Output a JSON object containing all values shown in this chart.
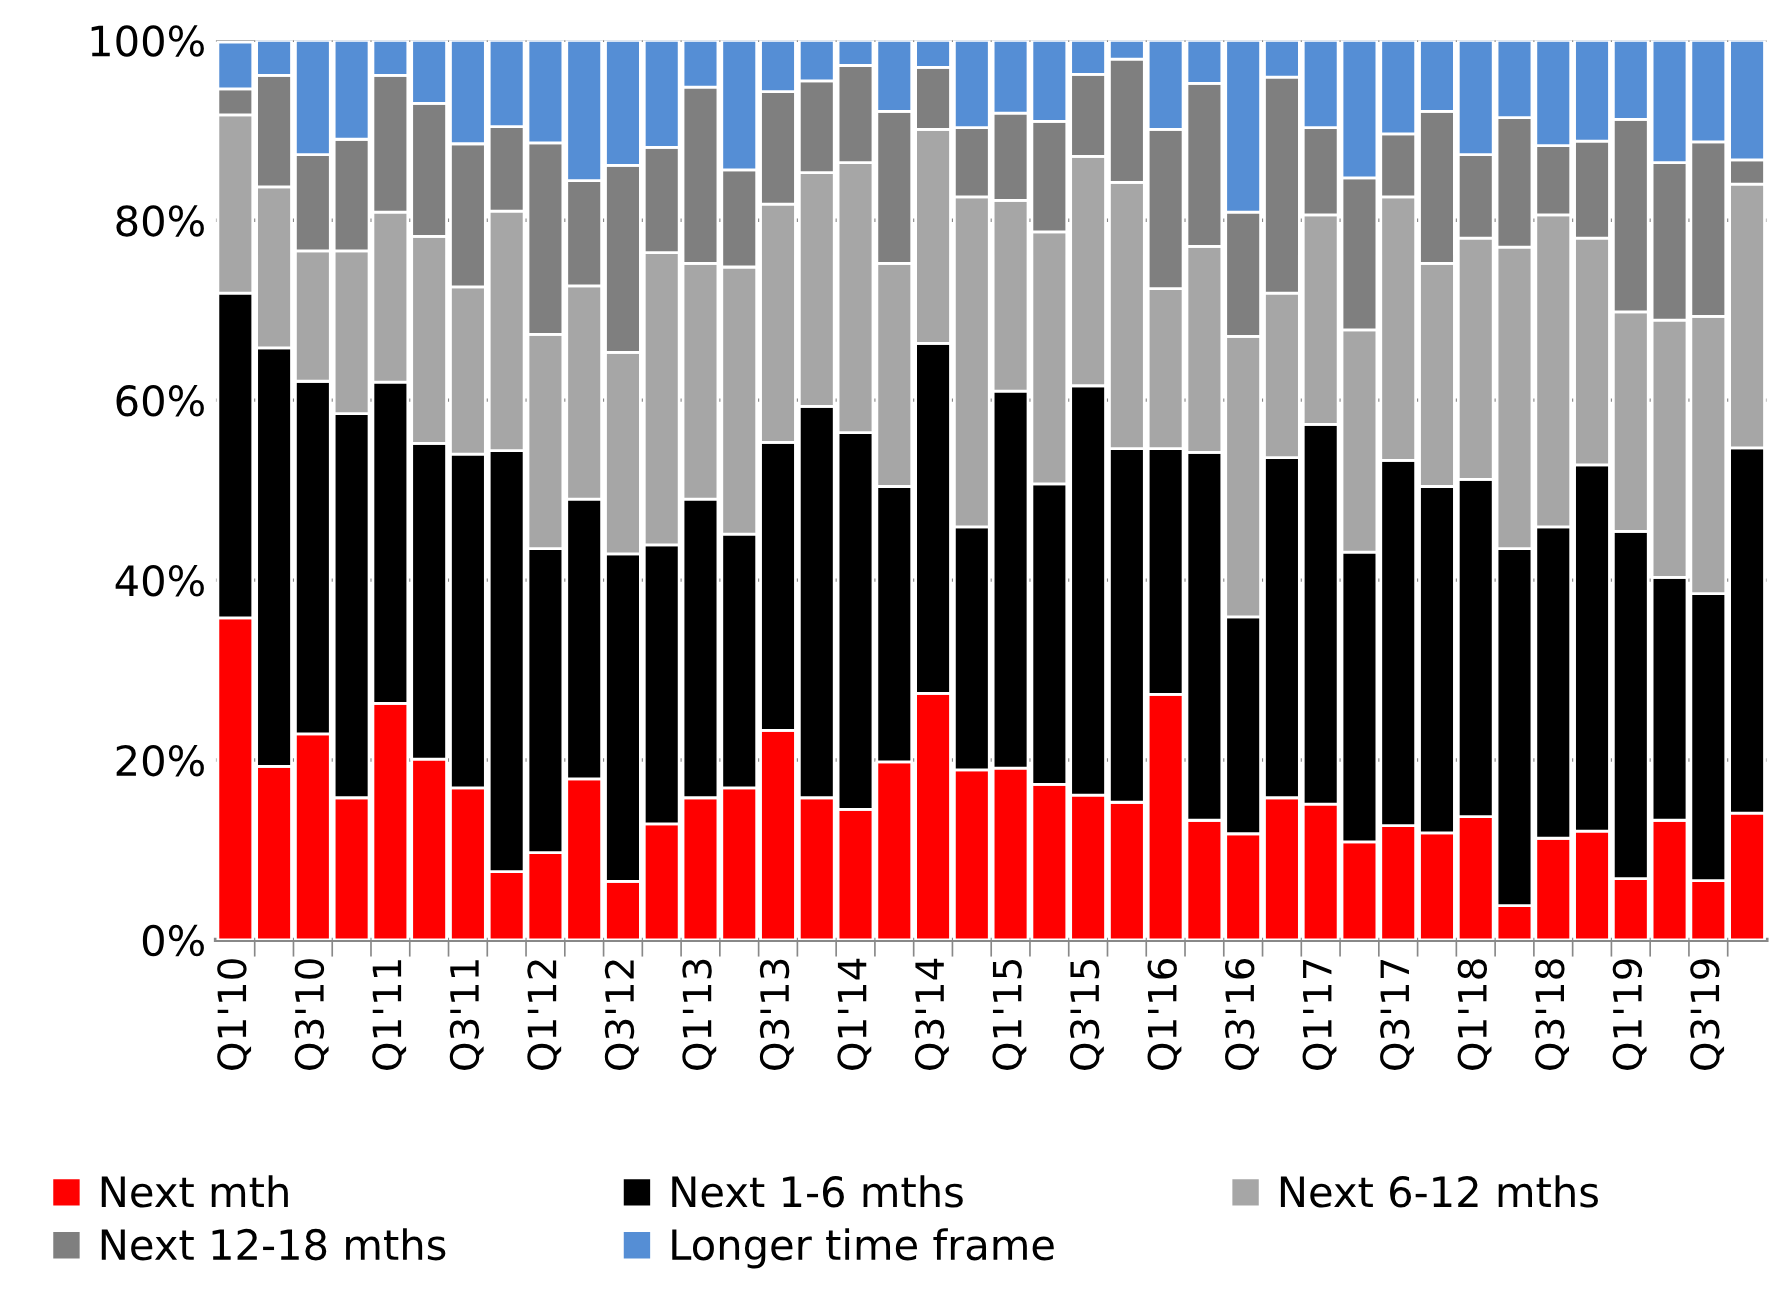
{
  "chart_data": {
    "type": "bar",
    "stacked": true,
    "categories": [
      "Q1'10",
      null,
      "Q3'10",
      null,
      "Q1'11",
      null,
      "Q3'11",
      null,
      "Q1'12",
      null,
      "Q3'12",
      null,
      "Q1'13",
      null,
      "Q3'13",
      null,
      "Q1'14",
      null,
      "Q3'14",
      null,
      "Q1'15",
      null,
      "Q3'15",
      null,
      "Q1'16",
      null,
      "Q3'16",
      null,
      "Q1'17",
      null,
      "Q3'17",
      null,
      "Q1'18",
      null,
      "Q3'18",
      null,
      "Q1'19",
      null,
      "Q3'19",
      null
    ],
    "series": [
      {
        "name": "Next mth",
        "color": "#ff0000",
        "values": [
          35.8,
          19.3,
          22.9,
          15.8,
          26.3,
          20.1,
          16.9,
          7.6,
          9.7,
          17.9,
          6.5,
          12.9,
          15.8,
          16.9,
          23.3,
          15.8,
          14.5,
          19.8,
          27.4,
          18.9,
          19.1,
          17.3,
          16.1,
          15.3,
          27.3,
          13.3,
          11.8,
          15.8,
          15.1,
          10.9,
          12.7,
          11.9,
          13.7,
          3.8,
          11.3,
          12.1,
          6.8,
          13.3,
          6.6,
          14.1
        ]
      },
      {
        "name": "Next 1-6 mths",
        "color": "#000000",
        "values": [
          36.1,
          46.5,
          39.2,
          42.7,
          35.7,
          35.1,
          37.1,
          46.8,
          33.8,
          31.1,
          36.4,
          31.0,
          33.2,
          28.2,
          32.0,
          43.5,
          41.9,
          30.6,
          38.9,
          27.0,
          41.9,
          33.4,
          45.5,
          39.3,
          27.3,
          40.9,
          24.1,
          37.8,
          42.2,
          32.2,
          40.6,
          38.5,
          37.5,
          39.7,
          34.6,
          40.7,
          38.6,
          27.0,
          31.9,
          40.6
        ]
      },
      {
        "name": "Next 6-12 mths",
        "color": "#a6a6a6",
        "values": [
          19.8,
          17.9,
          14.5,
          18.1,
          18.9,
          23.0,
          18.6,
          26.6,
          23.8,
          23.7,
          22.4,
          32.5,
          26.2,
          29.7,
          26.5,
          26.0,
          30.0,
          24.8,
          23.8,
          36.7,
          21.2,
          28.0,
          25.5,
          29.6,
          17.8,
          22.9,
          31.2,
          18.3,
          23.3,
          24.7,
          29.3,
          24.8,
          26.8,
          33.5,
          34.7,
          25.2,
          24.4,
          28.6,
          30.8,
          29.3
        ]
      },
      {
        "name": "Next 12-18 mths",
        "color": "#7f7f7f",
        "values": [
          2.9,
          12.4,
          10.7,
          12.4,
          15.2,
          14.8,
          15.9,
          9.4,
          21.3,
          11.7,
          20.8,
          11.7,
          19.6,
          10.8,
          12.5,
          10.2,
          10.8,
          16.9,
          6.9,
          7.7,
          9.7,
          12.3,
          9.1,
          13.7,
          17.7,
          18.1,
          13.8,
          24.0,
          9.7,
          16.9,
          7.0,
          16.9,
          9.3,
          14.4,
          7.7,
          10.8,
          21.4,
          17.5,
          19.4,
          2.7
        ]
      },
      {
        "name": "Longer time frame",
        "color": "#558ed5",
        "values": [
          5.2,
          3.9,
          12.7,
          11.0,
          3.9,
          7.0,
          11.5,
          9.6,
          11.4,
          15.6,
          13.9,
          11.9,
          5.2,
          14.4,
          5.7,
          4.5,
          2.8,
          7.9,
          3.0,
          9.7,
          8.1,
          9.0,
          3.8,
          2.1,
          9.9,
          4.8,
          19.1,
          4.1,
          9.7,
          15.3,
          10.4,
          7.9,
          12.7,
          8.6,
          11.7,
          11.2,
          8.8,
          13.6,
          11.3,
          13.3
        ]
      }
    ],
    "ylim": [
      0,
      100
    ],
    "yticks": [
      {
        "value": 0,
        "label": "0%"
      },
      {
        "value": 20,
        "label": "20%"
      },
      {
        "value": 40,
        "label": "40%"
      },
      {
        "value": 60,
        "label": "60%"
      },
      {
        "value": 80,
        "label": "80%"
      },
      {
        "value": 100,
        "label": "100%"
      }
    ],
    "grid": "y",
    "legend": "bottom"
  }
}
